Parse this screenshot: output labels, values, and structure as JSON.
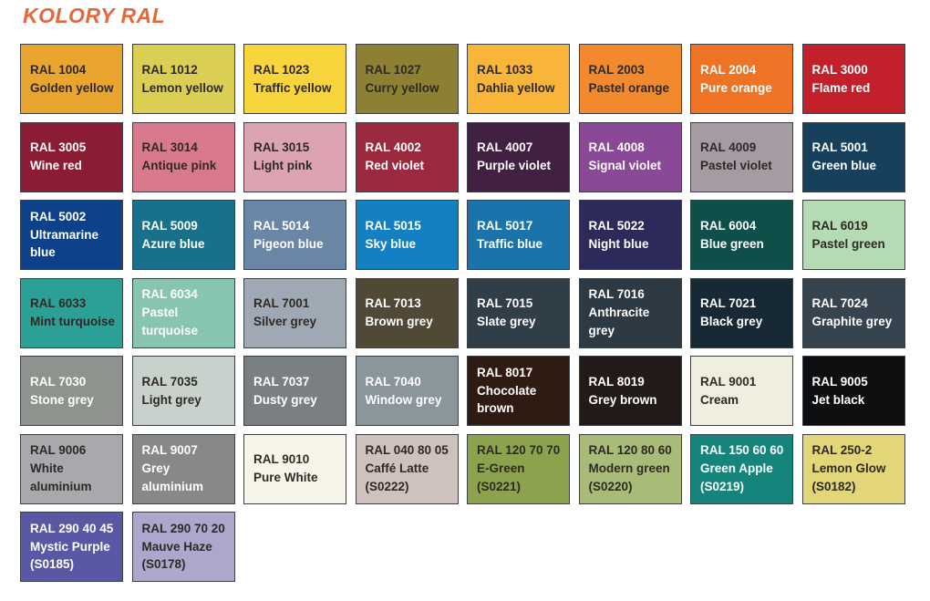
{
  "title": "KOLORY RAL",
  "accent_color": "#E4683C",
  "swatch_border_color": "#3C4046",
  "text_dark": "#2E2A25",
  "text_light": "#FFFFFF",
  "swatches": [
    {
      "code": "RAL 1004",
      "name": "Golden yellow",
      "suffix": "",
      "bg": "#EAA52F",
      "text": "dark"
    },
    {
      "code": "RAL 1012",
      "name": "Lemon yellow",
      "suffix": "",
      "bg": "#DACF53",
      "text": "dark"
    },
    {
      "code": "RAL 1023",
      "name": "Traffic yellow",
      "suffix": "",
      "bg": "#F8D53C",
      "text": "dark"
    },
    {
      "code": "RAL 1027",
      "name": "Curry yellow",
      "suffix": "",
      "bg": "#8E8033",
      "text": "dark"
    },
    {
      "code": "RAL 1033",
      "name": "Dahlia yellow",
      "suffix": "",
      "bg": "#F8B539",
      "text": "dark"
    },
    {
      "code": "RAL 2003",
      "name": "Pastel orange",
      "suffix": "",
      "bg": "#F2892D",
      "text": "dark"
    },
    {
      "code": "RAL 2004",
      "name": "Pure orange",
      "suffix": "",
      "bg": "#EE7325",
      "text": "light"
    },
    {
      "code": "RAL 3000",
      "name": "Flame red",
      "suffix": "",
      "bg": "#C2202B",
      "text": "light"
    },
    {
      "code": "RAL 3005",
      "name": "Wine red",
      "suffix": "",
      "bg": "#8B1C33",
      "text": "light"
    },
    {
      "code": "RAL 3014",
      "name": "Antique pink",
      "suffix": "",
      "bg": "#D87A8B",
      "text": "dark"
    },
    {
      "code": "RAL 3015",
      "name": "Light pink",
      "suffix": "",
      "bg": "#DCA3B0",
      "text": "dark"
    },
    {
      "code": "RAL 4002",
      "name": "Red violet",
      "suffix": "",
      "bg": "#9B2A3E",
      "text": "light"
    },
    {
      "code": "RAL 4007",
      "name": "Purple violet",
      "suffix": "",
      "bg": "#412041",
      "text": "light"
    },
    {
      "code": "RAL 4008",
      "name": "Signal violet",
      "suffix": "",
      "bg": "#8A4997",
      "text": "light"
    },
    {
      "code": "RAL 4009",
      "name": "Pastel violet",
      "suffix": "",
      "bg": "#A59BA3",
      "text": "dark"
    },
    {
      "code": "RAL 5001",
      "name": "Green blue",
      "suffix": "",
      "bg": "#16405B",
      "text": "light"
    },
    {
      "code": "RAL 5002",
      "name": "Ultramarine blue",
      "suffix": "",
      "bg": "#0D4189",
      "text": "light"
    },
    {
      "code": "RAL 5009",
      "name": "Azure blue",
      "suffix": "",
      "bg": "#19708B",
      "text": "light"
    },
    {
      "code": "RAL 5014",
      "name": "Pigeon blue",
      "suffix": "",
      "bg": "#6A86A6",
      "text": "light"
    },
    {
      "code": "RAL 5015",
      "name": "Sky blue",
      "suffix": "",
      "bg": "#1380C4",
      "text": "light"
    },
    {
      "code": "RAL 5017",
      "name": "Traffic blue",
      "suffix": "",
      "bg": "#1A74A9",
      "text": "light"
    },
    {
      "code": "RAL 5022",
      "name": "Night blue",
      "suffix": "",
      "bg": "#2B2A5B",
      "text": "light"
    },
    {
      "code": "RAL 6004",
      "name": "Blue green",
      "suffix": "",
      "bg": "#0F4F49",
      "text": "light"
    },
    {
      "code": "RAL 6019",
      "name": "Pastel green",
      "suffix": "",
      "bg": "#B5DBB4",
      "text": "dark"
    },
    {
      "code": "RAL 6033",
      "name": "Mint turquoise",
      "suffix": "",
      "bg": "#2BA097",
      "text": "dark"
    },
    {
      "code": "RAL 6034",
      "name": "Pastel turquoise",
      "suffix": "",
      "bg": "#87C5B2",
      "text": "light"
    },
    {
      "code": "RAL 7001",
      "name": "Silver grey",
      "suffix": "",
      "bg": "#9FA9B3",
      "text": "dark"
    },
    {
      "code": "RAL 7013",
      "name": "Brown grey",
      "suffix": "",
      "bg": "#514935",
      "text": "light"
    },
    {
      "code": "RAL 7015",
      "name": "Slate grey",
      "suffix": "",
      "bg": "#303E48",
      "text": "light"
    },
    {
      "code": "RAL 7016",
      "name": "Anthracite grey",
      "suffix": "",
      "bg": "#2D3A43",
      "text": "light"
    },
    {
      "code": "RAL 7021",
      "name": "Black grey",
      "suffix": "",
      "bg": "#172934",
      "text": "light"
    },
    {
      "code": "RAL 7024",
      "name": "Graphite grey",
      "suffix": "",
      "bg": "#364450",
      "text": "light"
    },
    {
      "code": "RAL 7030",
      "name": "Stone grey",
      "suffix": "",
      "bg": "#8E948D",
      "text": "light"
    },
    {
      "code": "RAL 7035",
      "name": "Light grey",
      "suffix": "",
      "bg": "#C9D1CD",
      "text": "dark"
    },
    {
      "code": "RAL 7037",
      "name": "Dusty grey",
      "suffix": "",
      "bg": "#7A7F81",
      "text": "light"
    },
    {
      "code": "RAL 7040",
      "name": "Window grey",
      "suffix": "",
      "bg": "#8A959C",
      "text": "light"
    },
    {
      "code": "RAL 8017",
      "name": "Chocolate brown",
      "suffix": "",
      "bg": "#301B12",
      "text": "light"
    },
    {
      "code": "RAL 8019",
      "name": "Grey brown",
      "suffix": "",
      "bg": "#221A18",
      "text": "light"
    },
    {
      "code": "RAL 9001",
      "name": "Cream",
      "suffix": "",
      "bg": "#F0EEDF",
      "text": "dark"
    },
    {
      "code": "RAL 9005",
      "name": "Jet black",
      "suffix": "",
      "bg": "#0D0E10",
      "text": "light"
    },
    {
      "code": "RAL 9006",
      "name": "White aluminium",
      "suffix": "",
      "bg": "#A7A9AC",
      "text": "dark"
    },
    {
      "code": "RAL 9007",
      "name": "Grey aluminium",
      "suffix": "",
      "bg": "#878889",
      "text": "light"
    },
    {
      "code": "RAL 9010",
      "name": "Pure White",
      "suffix": "",
      "bg": "#F7F5EA",
      "text": "dark"
    },
    {
      "code": "RAL 040 80 05",
      "name": "Caffé Latte",
      "suffix": "(S0222)",
      "bg": "#CFC1BC",
      "text": "dark"
    },
    {
      "code": "RAL 120 70 70",
      "name": "E-Green",
      "suffix": "(S0221)",
      "bg": "#8CA24D",
      "text": "dark"
    },
    {
      "code": "RAL 120 80 60",
      "name": "Modern green",
      "suffix": "(S0220)",
      "bg": "#A9BB79",
      "text": "dark"
    },
    {
      "code": "RAL 150 60 60",
      "name": "Green Apple",
      "suffix": "(S0219)",
      "bg": "#15857B",
      "text": "light"
    },
    {
      "code": "RAL 250-2",
      "name": "Lemon Glow",
      "suffix": "(S0182)",
      "bg": "#E2D678",
      "text": "dark"
    },
    {
      "code": "RAL 290 40 45",
      "name": "Mystic Purple",
      "suffix": "(S0185)",
      "bg": "#5958A5",
      "text": "light"
    },
    {
      "code": "RAL 290 70 20",
      "name": "Mauve Haze",
      "suffix": "(S0178)",
      "bg": "#ACA7CC",
      "text": "dark"
    }
  ]
}
